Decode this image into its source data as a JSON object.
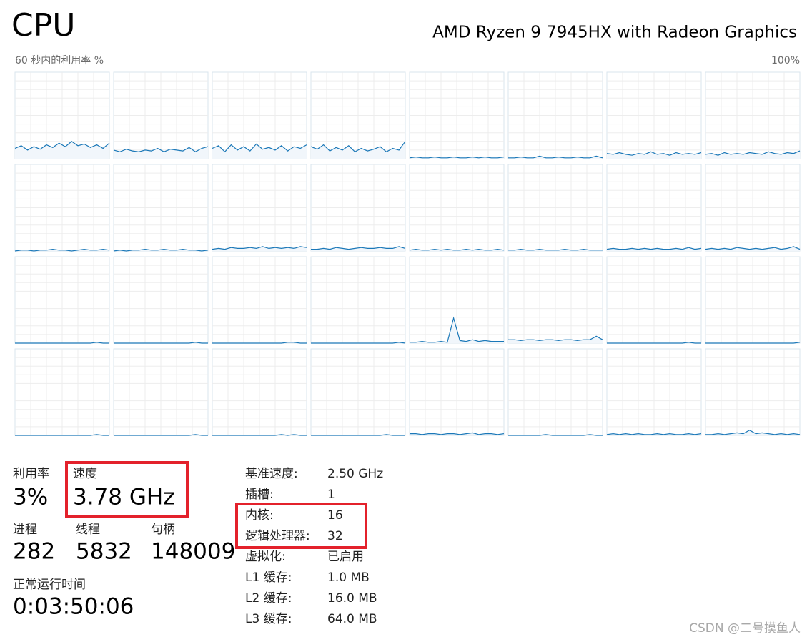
{
  "header": {
    "title": "CPU",
    "processor": "AMD Ryzen 9 7945HX with Radeon Graphics"
  },
  "graph_panel": {
    "caption": "60 秒内的利用率 %",
    "max_label": "100%",
    "ylim": [
      0,
      100
    ],
    "graphs": [
      {
        "values": [
          12,
          15,
          10,
          14,
          11,
          16,
          13,
          18,
          14,
          20,
          15,
          17,
          13,
          16,
          12,
          18
        ]
      },
      {
        "values": [
          10,
          8,
          11,
          9,
          8,
          10,
          9,
          12,
          8,
          11,
          10,
          9,
          13,
          8,
          12,
          14
        ]
      },
      {
        "values": [
          12,
          15,
          8,
          16,
          10,
          14,
          9,
          17,
          11,
          13,
          10,
          15,
          9,
          14,
          12,
          16
        ]
      },
      {
        "values": [
          14,
          11,
          16,
          9,
          13,
          10,
          15,
          8,
          12,
          9,
          11,
          14,
          8,
          12,
          10,
          20
        ]
      },
      {
        "values": [
          1,
          2,
          1,
          1,
          2,
          1,
          1,
          2,
          1,
          1,
          2,
          1,
          2,
          1,
          1,
          2
        ]
      },
      {
        "values": [
          1,
          1,
          2,
          1,
          1,
          3,
          1,
          1,
          2,
          1,
          1,
          2,
          1,
          1,
          3,
          1
        ]
      },
      {
        "values": [
          6,
          5,
          7,
          5,
          4,
          6,
          5,
          8,
          5,
          6,
          4,
          7,
          5,
          6,
          5,
          7
        ]
      },
      {
        "values": [
          5,
          6,
          4,
          7,
          5,
          6,
          5,
          7,
          6,
          5,
          8,
          6,
          5,
          7,
          6,
          9
        ]
      },
      {
        "values": [
          0,
          1,
          1,
          0,
          1,
          1,
          2,
          1,
          1,
          0,
          1,
          2,
          1,
          1,
          2,
          1
        ]
      },
      {
        "values": [
          0,
          1,
          0,
          1,
          1,
          2,
          1,
          1,
          2,
          1,
          1,
          2,
          1,
          1,
          0,
          1
        ]
      },
      {
        "values": [
          2,
          3,
          2,
          4,
          3,
          3,
          4,
          3,
          5,
          3,
          4,
          3,
          4,
          3,
          5,
          4
        ]
      },
      {
        "values": [
          2,
          2,
          3,
          2,
          4,
          3,
          2,
          3,
          4,
          3,
          3,
          4,
          3,
          3,
          5,
          3
        ]
      },
      {
        "values": [
          1,
          2,
          1,
          1,
          2,
          1,
          2,
          1,
          1,
          2,
          1,
          2,
          1,
          1,
          2,
          1
        ]
      },
      {
        "values": [
          1,
          1,
          2,
          1,
          1,
          2,
          1,
          1,
          1,
          2,
          1,
          1,
          2,
          1,
          1,
          1
        ]
      },
      {
        "values": [
          2,
          3,
          2,
          2,
          3,
          2,
          3,
          2,
          3,
          2,
          2,
          3,
          2,
          4,
          2,
          3
        ]
      },
      {
        "values": [
          2,
          3,
          2,
          3,
          2,
          4,
          3,
          2,
          3,
          2,
          3,
          4,
          2,
          3,
          5,
          2
        ]
      },
      {
        "values": [
          0,
          0,
          0,
          0,
          0,
          0,
          0,
          0,
          0,
          0,
          0,
          0,
          0,
          1,
          0,
          0
        ]
      },
      {
        "values": [
          0,
          0,
          0,
          0,
          0,
          0,
          0,
          0,
          0,
          0,
          0,
          0,
          0,
          1,
          0,
          0
        ]
      },
      {
        "values": [
          0,
          0,
          0,
          0,
          0,
          0,
          0,
          0,
          0,
          0,
          0,
          0,
          1,
          1,
          0,
          0
        ]
      },
      {
        "values": [
          0,
          0,
          0,
          0,
          0,
          0,
          0,
          0,
          0,
          0,
          0,
          0,
          0,
          0,
          1,
          0
        ]
      },
      {
        "values": [
          1,
          1,
          2,
          1,
          1,
          2,
          1,
          29,
          3,
          2,
          4,
          2,
          3,
          2,
          2,
          2
        ]
      },
      {
        "values": [
          4,
          4,
          3,
          4,
          4,
          3,
          4,
          4,
          3,
          4,
          4,
          3,
          4,
          4,
          8,
          4
        ]
      },
      {
        "values": [
          0,
          0,
          0,
          0,
          0,
          0,
          0,
          0,
          0,
          0,
          0,
          0,
          0,
          1,
          0,
          0
        ]
      },
      {
        "values": [
          0,
          0,
          0,
          0,
          0,
          0,
          0,
          0,
          0,
          0,
          0,
          0,
          0,
          0,
          0,
          1
        ]
      },
      {
        "values": [
          0,
          0,
          0,
          0,
          0,
          0,
          0,
          0,
          0,
          0,
          0,
          0,
          0,
          1,
          0,
          0
        ]
      },
      {
        "values": [
          0,
          0,
          0,
          0,
          0,
          0,
          0,
          0,
          0,
          0,
          0,
          0,
          0,
          1,
          0,
          0
        ]
      },
      {
        "values": [
          0,
          0,
          0,
          0,
          0,
          0,
          0,
          0,
          0,
          0,
          0,
          1,
          0,
          1,
          0,
          0
        ]
      },
      {
        "values": [
          0,
          0,
          0,
          0,
          0,
          0,
          0,
          0,
          0,
          0,
          0,
          0,
          1,
          0,
          0,
          0
        ]
      },
      {
        "values": [
          2,
          2,
          1,
          2,
          2,
          1,
          2,
          2,
          1,
          2,
          3,
          1,
          2,
          2,
          1,
          2
        ]
      },
      {
        "values": [
          0,
          0,
          0,
          0,
          0,
          0,
          1,
          0,
          0,
          0,
          0,
          0,
          0,
          1,
          0,
          0
        ]
      },
      {
        "values": [
          1,
          2,
          1,
          2,
          1,
          2,
          1,
          1,
          2,
          1,
          2,
          1,
          1,
          2,
          1,
          2
        ]
      },
      {
        "values": [
          1,
          1,
          2,
          1,
          2,
          3,
          2,
          6,
          2,
          3,
          2,
          1,
          2,
          1,
          2,
          1
        ]
      }
    ]
  },
  "stats": {
    "utilization": {
      "label": "利用率",
      "value": "3%"
    },
    "speed": {
      "label": "速度",
      "value": "3.78 GHz"
    },
    "processes": {
      "label": "进程",
      "value": "282"
    },
    "threads": {
      "label": "线程",
      "value": "5832"
    },
    "handles": {
      "label": "句柄",
      "value": "148009"
    },
    "uptime": {
      "label": "正常运行时间",
      "value": "0:03:50:06"
    }
  },
  "details": [
    {
      "label": "基准速度:",
      "value": "2.50 GHz"
    },
    {
      "label": "插槽:",
      "value": "1"
    },
    {
      "label": "内核:",
      "value": "16"
    },
    {
      "label": "逻辑处理器:",
      "value": "32"
    },
    {
      "label": "虚拟化:",
      "value": "已启用"
    },
    {
      "label": "L1 缓存:",
      "value": "1.0 MB"
    },
    {
      "label": "L2 缓存:",
      "value": "16.0 MB"
    },
    {
      "label": "L3 缓存:",
      "value": "64.0 MB"
    }
  ],
  "watermark": "CSDN @二号摸鱼人"
}
